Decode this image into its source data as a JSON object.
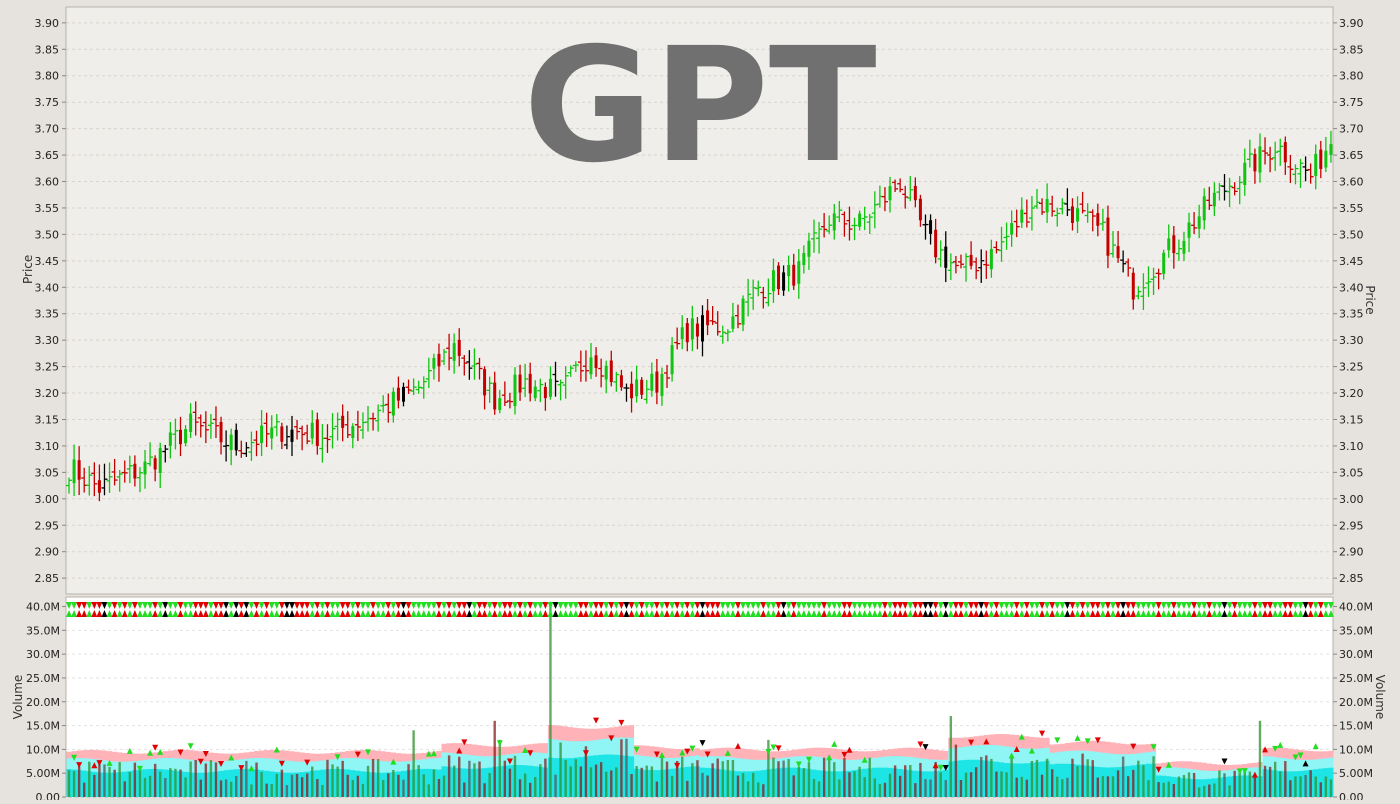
{
  "watermark": "GPT",
  "price_panel": {
    "ylabel": "Price",
    "ticks": [
      "2.85",
      "2.90",
      "2.95",
      "3.00",
      "3.05",
      "3.10",
      "3.15",
      "3.20",
      "3.25",
      "3.30",
      "3.35",
      "3.40",
      "3.45",
      "3.50",
      "3.55",
      "3.60",
      "3.65",
      "3.70",
      "3.75",
      "3.80",
      "3.85",
      "3.90"
    ]
  },
  "volume_panel": {
    "ylabel": "Volume",
    "ticks": [
      "0.00",
      "5.00M",
      "10.0M",
      "15.0M",
      "20.0M",
      "25.0M",
      "30.0M",
      "35.0M",
      "40.0M"
    ]
  },
  "colors": {
    "up": "#11c411",
    "down": "#c20000",
    "neutral": "#000000",
    "plot_bg": "#f0eeea",
    "volume_bg": "#ffffff",
    "band_outer": "#ffb3b8",
    "band_mid": "#8ff5f5",
    "band_inner": "#1ee5e5"
  },
  "chart_data": {
    "type": "ohlc-bar",
    "bars": 250,
    "ylim_price": [
      2.82,
      3.93
    ],
    "ylim_volume": [
      0,
      42000000
    ],
    "anchors": [
      [
        0,
        3.06
      ],
      [
        6,
        3.02
      ],
      [
        15,
        3.06
      ],
      [
        24,
        3.14
      ],
      [
        33,
        3.1
      ],
      [
        42,
        3.13
      ],
      [
        51,
        3.12
      ],
      [
        60,
        3.16
      ],
      [
        69,
        3.21
      ],
      [
        76,
        3.29
      ],
      [
        84,
        3.19
      ],
      [
        90,
        3.22
      ],
      [
        97,
        3.2
      ],
      [
        103,
        3.28
      ],
      [
        110,
        3.2
      ],
      [
        116,
        3.22
      ],
      [
        122,
        3.32
      ],
      [
        130,
        3.33
      ],
      [
        136,
        3.4
      ],
      [
        144,
        3.43
      ],
      [
        150,
        3.53
      ],
      [
        156,
        3.52
      ],
      [
        164,
        3.6
      ],
      [
        170,
        3.48
      ],
      [
        176,
        3.43
      ],
      [
        183,
        3.47
      ],
      [
        190,
        3.56
      ],
      [
        197,
        3.55
      ],
      [
        204,
        3.5
      ],
      [
        210,
        3.4
      ],
      [
        218,
        3.48
      ],
      [
        226,
        3.57
      ],
      [
        232,
        3.62
      ],
      [
        238,
        3.67
      ],
      [
        245,
        3.61
      ],
      [
        249,
        3.68
      ]
    ],
    "volume_spikes": [
      [
        68,
        14000000
      ],
      [
        84,
        16000000
      ],
      [
        85,
        12000000
      ],
      [
        95,
        41000000
      ],
      [
        138,
        12000000
      ],
      [
        174,
        17000000
      ],
      [
        175,
        11000000
      ],
      [
        235,
        16000000
      ]
    ],
    "volume_regimes": [
      [
        0,
        10000000
      ],
      [
        74,
        11500000
      ],
      [
        95,
        15500000
      ],
      [
        112,
        11000000
      ],
      [
        125,
        10500000
      ],
      [
        174,
        13500000
      ],
      [
        194,
        12000000
      ],
      [
        215,
        7500000
      ],
      [
        236,
        10500000
      ]
    ]
  }
}
